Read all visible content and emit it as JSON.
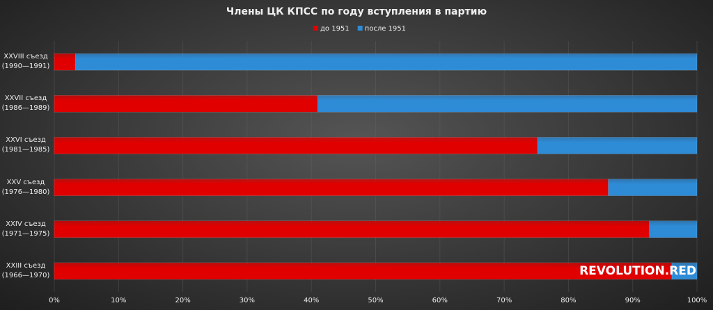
{
  "chart_data": {
    "type": "stacked-bar-horizontal",
    "title": "Члены ЦК КПСС по году вступления в партию",
    "categories": [
      "XXVIII съезд\n(1990—1991)",
      "XXVII съезд\n(1986—1989)",
      "XXVI съезд\n(1981—1985)",
      "XXV съезд\n(1976—1980)",
      "XXIV съезд\n(1971—1975)",
      "XXIII съезд\n(1966—1970)"
    ],
    "series": [
      {
        "name": "до 1951",
        "color": "#e00000",
        "values": [
          3.3,
          41,
          75.2,
          86.2,
          92.6,
          96.1
        ]
      },
      {
        "name": "после 1951",
        "color": "#2e8bd6",
        "values": [
          96.7,
          59,
          24.8,
          13.8,
          7.4,
          3.9
        ]
      }
    ],
    "xlim": [
      0,
      100
    ],
    "xticks": [
      {
        "value": 0,
        "label": "0%"
      },
      {
        "value": 10,
        "label": "10%"
      },
      {
        "value": 20,
        "label": "20%"
      },
      {
        "value": 30,
        "label": "30%"
      },
      {
        "value": 40,
        "label": "40%"
      },
      {
        "value": 50,
        "label": "50%"
      },
      {
        "value": 60,
        "label": "60%"
      },
      {
        "value": 70,
        "label": "70%"
      },
      {
        "value": 80,
        "label": "80%"
      },
      {
        "value": 90,
        "label": "90%"
      },
      {
        "value": 100,
        "label": "100%"
      }
    ],
    "grid": true,
    "legend": "top",
    "watermark": "REVOLUTION.RED"
  }
}
